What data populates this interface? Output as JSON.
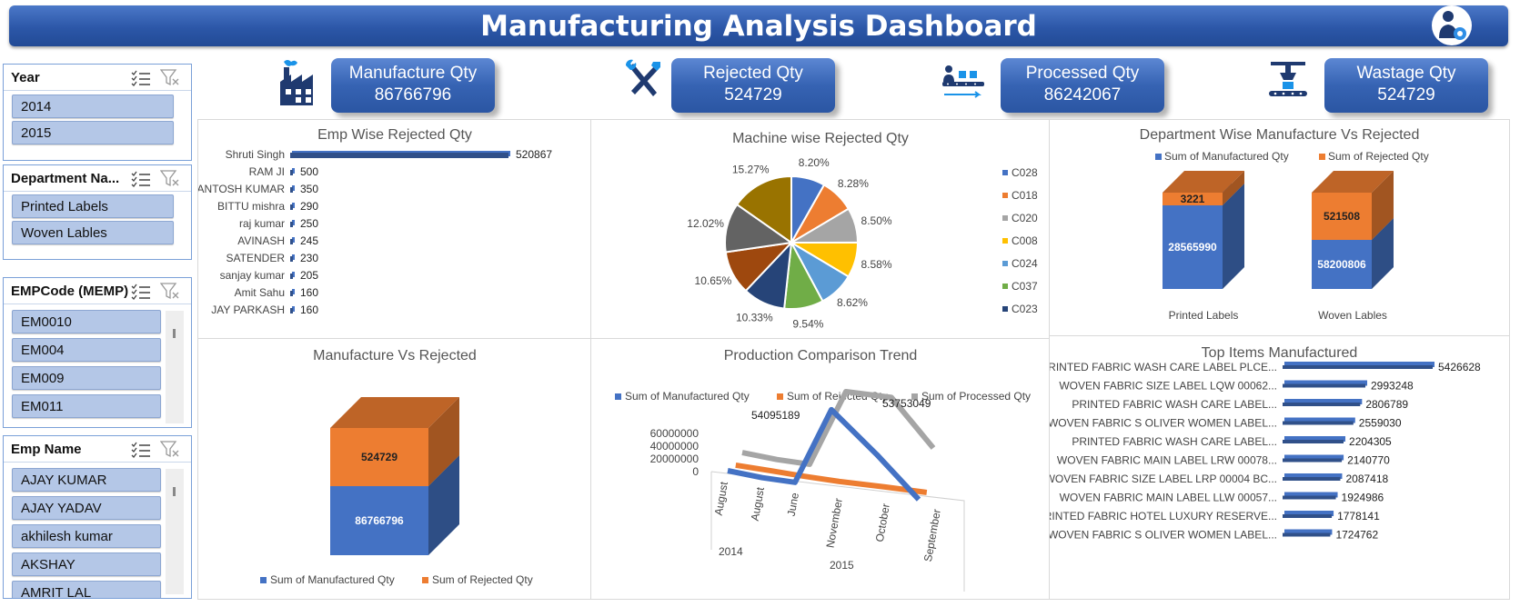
{
  "header": {
    "title": "Manufacturing Analysis Dashboard",
    "logo_icon": "engineer-gear-icon"
  },
  "slicers": {
    "year": {
      "title": "Year",
      "items": [
        "2014",
        "2015"
      ]
    },
    "department": {
      "title": "Department Na...",
      "items": [
        "Printed Labels",
        "Woven Lables"
      ]
    },
    "empcode": {
      "title": "EMPCode (MEMP)",
      "items": [
        "EM0010",
        "EM004",
        "EM009",
        "EM011"
      ]
    },
    "empname": {
      "title": "Emp Name",
      "items": [
        "AJAY  KUMAR",
        "AJAY YADAV",
        "akhilesh kumar",
        "AKSHAY",
        "AMRIT LAL"
      ]
    }
  },
  "kpis": [
    {
      "label": "Manufacture Qty",
      "value": "86766796",
      "icon": "factory-icon"
    },
    {
      "label": "Rejected Qty",
      "value": "524729",
      "icon": "tools-icon"
    },
    {
      "label": "Processed Qty",
      "value": "86242067",
      "icon": "conveyor-worker-icon"
    },
    {
      "label": "Wastage Qty",
      "value": "524729",
      "icon": "robot-arm-icon"
    }
  ],
  "colors": {
    "blue": "#4472c4",
    "orange": "#ed7d31",
    "gray": "#a5a5a5",
    "accent": "#2c57a8"
  },
  "chart_data": [
    {
      "type": "bar",
      "title": "Emp Wise Rejected Qty",
      "categories": [
        "Shruti Singh",
        "RAM JI",
        "SANTOSH KUMAR",
        "BITTU mishra",
        "raj  kumar",
        "AVINASH",
        "SATENDER",
        "sanjay  kumar",
        "Amit Sahu",
        "JAY PARKASH"
      ],
      "values": [
        520867,
        500,
        350,
        290,
        250,
        245,
        230,
        205,
        160,
        160
      ]
    },
    {
      "type": "pie",
      "title": "Machine wise Rejected Qty",
      "legend": [
        "C028",
        "C018",
        "C020",
        "C008",
        "C024",
        "C037",
        "C023"
      ],
      "slices": [
        {
          "label": "8.20%",
          "value": 8.2,
          "color": "#4472c4"
        },
        {
          "label": "8.28%",
          "value": 8.28,
          "color": "#ed7d31"
        },
        {
          "label": "8.50%",
          "value": 8.5,
          "color": "#a5a5a5"
        },
        {
          "label": "8.58%",
          "value": 8.58,
          "color": "#ffc000"
        },
        {
          "label": "8.62%",
          "value": 8.62,
          "color": "#5b9bd5"
        },
        {
          "label": "9.54%",
          "value": 9.54,
          "color": "#70ad47"
        },
        {
          "label": "10.33%",
          "value": 10.33,
          "color": "#264478"
        },
        {
          "label": "10.65%",
          "value": 10.65,
          "color": "#9e480e"
        },
        {
          "label": "12.02%",
          "value": 12.02,
          "color": "#636363"
        },
        {
          "label": "15.27%",
          "value": 15.27,
          "color": "#997300"
        }
      ],
      "legend_placement": "right"
    },
    {
      "type": "bar",
      "title": "Department Wise Manufacture Vs Rejected",
      "categories": [
        "Printed Labels",
        "Woven Lables"
      ],
      "series": [
        {
          "name": "Sum of Manufactured Qty",
          "values": [
            28565990,
            58200806
          ]
        },
        {
          "name": "Sum of Rejected Qty",
          "values": [
            3221,
            521508
          ]
        }
      ],
      "stacked": true,
      "legend_placement": "top"
    },
    {
      "type": "bar",
      "title": "Manufacture Vs Rejected",
      "series": [
        {
          "name": "Sum of Manufactured Qty",
          "values": [
            86766796
          ]
        },
        {
          "name": "Sum of Rejected Qty",
          "values": [
            524729
          ]
        }
      ],
      "stacked": true,
      "legend_placement": "bottom"
    },
    {
      "type": "line",
      "title": "Production Comparison Trend",
      "categories": [
        "August",
        "August",
        "June",
        "November",
        "October",
        "September"
      ],
      "groups": [
        {
          "label": "2014",
          "span": 1
        },
        {
          "label": "2015",
          "span": 5
        }
      ],
      "series": [
        {
          "name": "Sum of Manufactured Qty",
          "values": [
            3000000,
            2000000,
            2500000,
            54095189,
            28000000,
            2000000
          ]
        },
        {
          "name": "Sum of Rejected Qty",
          "values": [
            20000,
            30000,
            25000,
            80000,
            60000,
            40000
          ]
        },
        {
          "name": "Sum of Processed Qty",
          "values": [
            2980000,
            1970000,
            2470000,
            54015189,
            53753049,
            24000000
          ]
        }
      ],
      "data_labels": [
        "54095189",
        "53753049"
      ],
      "y_ticks": [
        "60000000",
        "40000000",
        "20000000",
        "0"
      ],
      "legend_placement": "top"
    },
    {
      "type": "bar",
      "title": "Top Items Manufactured",
      "categories": [
        "PRINTED FABRIC WASH CARE LABEL PLCE...",
        "WOVEN FABRIC SIZE LABEL LQW 00062...",
        "PRINTED FABRIC WASH CARE LABEL...",
        "WOVEN FABRIC S OLIVER WOMEN LABEL...",
        "PRINTED FABRIC WASH CARE LABEL...",
        "WOVEN FABRIC MAIN LABEL LRW 00078...",
        "WOVEN FABRIC SIZE LABEL LRP 00004 BC...",
        "WOVEN FABRIC MAIN LABEL LLW 00057...",
        "PRINTED FABRIC HOTEL LUXURY RESERVE...",
        "WOVEN FABRIC S OLIVER WOMEN LABEL..."
      ],
      "values": [
        5426628,
        2993248,
        2806789,
        2559030,
        2204305,
        2140770,
        2087418,
        1924986,
        1778141,
        1724762
      ]
    }
  ]
}
